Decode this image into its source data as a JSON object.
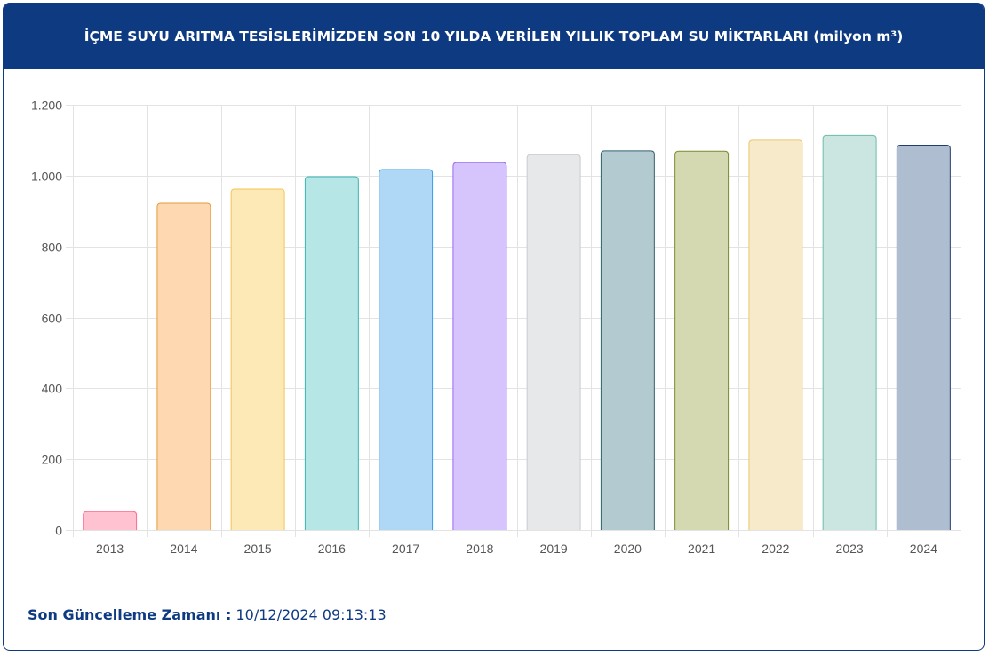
{
  "header": {
    "title": "İÇME SUYU ARITMA TESİSLERİMİZDEN SON 10 YILDA VERİLEN YILLIK TOPLAM SU MİKTARLARI (milyon m³)"
  },
  "footer": {
    "label": "Son Güncelleme Zamanı :",
    "value": "10/12/2024 09:13:13"
  },
  "chart_data": {
    "type": "bar",
    "categories": [
      "2013",
      "2014",
      "2015",
      "2016",
      "2017",
      "2018",
      "2019",
      "2020",
      "2021",
      "2022",
      "2023",
      "2024"
    ],
    "values": [
      52,
      922,
      962,
      997,
      1017,
      1037,
      1059,
      1070,
      1069,
      1100,
      1114,
      1086
    ],
    "ylim": [
      0,
      1200
    ],
    "yticks": [
      0,
      200,
      400,
      600,
      800,
      1000,
      1200
    ],
    "ytick_labels": [
      "0",
      "200",
      "400",
      "600",
      "800",
      "1.000",
      "1.200"
    ],
    "grid": true,
    "legend": "none",
    "colors": {
      "fills": [
        "#ffc2d1",
        "#fed8b1",
        "#fde9b6",
        "#b6e6e6",
        "#aed8f6",
        "#d6c4fc",
        "#e7e8ea",
        "#b2cad0",
        "#d4d9b1",
        "#f7eaca",
        "#cbe6e0",
        "#afbdd0"
      ],
      "borders": [
        "#ff6d8e",
        "#e69a3c",
        "#f3c454",
        "#38b4b2",
        "#3a9ee4",
        "#9b66f0",
        "#c9cbcf",
        "#30606c",
        "#7a8a30",
        "#ecc86a",
        "#6cbca8",
        "#223a6e"
      ]
    }
  }
}
